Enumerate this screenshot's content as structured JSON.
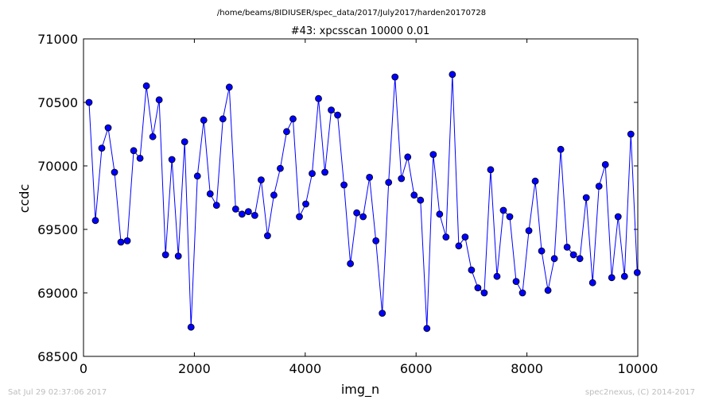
{
  "suptitle": "/home/beams/8IDIUSER/spec_data/2017/July2017/harden20170728",
  "footer": {
    "left": "Sat Jul 29 02:37:06 2017",
    "right": "spec2nexus, (C) 2014-2017"
  },
  "colors": {
    "series": "#0000ff",
    "axis": "#000000",
    "footer": "#bdbdbd"
  },
  "chart_data": {
    "type": "line",
    "title": "#43: xpcsscan 10000 0.01",
    "xlabel": "img_n",
    "ylabel": "ccdc",
    "xlim": [
      0,
      10000
    ],
    "ylim": [
      68500,
      71000
    ],
    "xticks": [
      0,
      2000,
      4000,
      6000,
      8000,
      10000
    ],
    "yticks": [
      68500,
      69000,
      69500,
      70000,
      70500,
      71000
    ],
    "grid": false,
    "marker": "circle",
    "series": [
      {
        "x": [
          100,
          215,
          330,
          445,
          560,
          675,
          790,
          905,
          1020,
          1135,
          1250,
          1365,
          1480,
          1595,
          1710,
          1825,
          1940,
          2055,
          2170,
          2285,
          2400,
          2515,
          2630,
          2745,
          2860,
          2975,
          3090,
          3205,
          3320,
          3435,
          3550,
          3665,
          3780,
          3895,
          4010,
          4125,
          4240,
          4355,
          4470,
          4585,
          4700,
          4815,
          4930,
          5045,
          5160,
          5275,
          5390,
          5505,
          5620,
          5735,
          5850,
          5965,
          6080,
          6195,
          6310,
          6425,
          6540,
          6655,
          6770,
          6885,
          7000,
          7115,
          7230,
          7345,
          7460,
          7575,
          7690,
          7805,
          7920,
          8035,
          8150,
          8265,
          8380,
          8495,
          8610,
          8725,
          8840,
          8955,
          9070,
          9185,
          9300,
          9415,
          9530,
          9645,
          9760,
          9875,
          9990
        ],
        "y": [
          70500,
          69570,
          70140,
          70300,
          69950,
          69400,
          69410,
          70120,
          70060,
          70630,
          70230,
          70520,
          69300,
          70050,
          69290,
          70190,
          68730,
          69920,
          70360,
          69780,
          69690,
          70370,
          70620,
          69660,
          69620,
          69640,
          69610,
          69890,
          69450,
          69770,
          69980,
          70270,
          70370,
          69600,
          69700,
          69940,
          70530,
          69950,
          70440,
          70400,
          69850,
          69230,
          69630,
          69600,
          69910,
          69410,
          68840,
          69870,
          70700,
          69900,
          70070,
          69770,
          69730,
          68720,
          70090,
          69620,
          69440,
          70720,
          69370,
          69440,
          69180,
          69040,
          69000,
          69970,
          69130,
          69650,
          69600,
          69090,
          69000,
          69490,
          69880,
          69330,
          69020,
          69270,
          70130,
          69360,
          69300,
          69270,
          69750,
          69080,
          69840,
          70010,
          69120,
          69600,
          69130,
          70250,
          69160
        ]
      }
    ]
  }
}
